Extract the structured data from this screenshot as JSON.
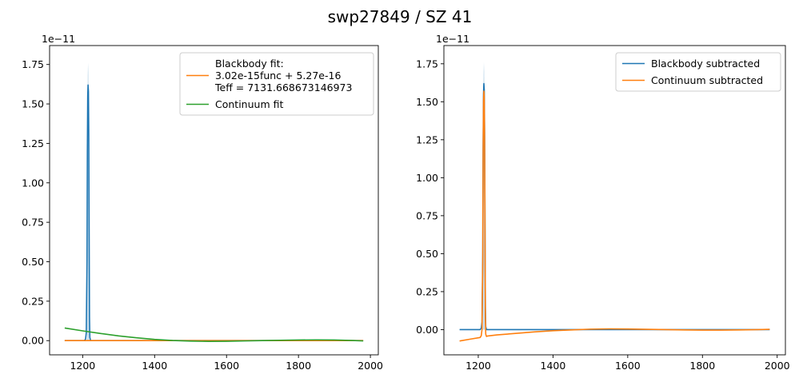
{
  "figure": {
    "title": "swp27849 / SZ  41"
  },
  "chart_data": [
    {
      "type": "line",
      "title": "",
      "xlabel": "",
      "ylabel": "",
      "xlim": [
        1108,
        2022
      ],
      "ylim": [
        -0.09,
        1.87
      ],
      "y_offset_label": "1e−11",
      "x_ticks": [
        1200,
        1400,
        1600,
        1800,
        2000
      ],
      "x_tick_labels": [
        "1200",
        "1400",
        "1600",
        "1800",
        "2000"
      ],
      "y_ticks": [
        0.0,
        0.25,
        0.5,
        0.75,
        1.0,
        1.25,
        1.5,
        1.75
      ],
      "y_tick_labels": [
        "0.00",
        "0.25",
        "0.50",
        "0.75",
        "1.00",
        "1.25",
        "1.50",
        "1.75"
      ],
      "legend_position": "top-right",
      "grid": false,
      "series": [
        {
          "name": "",
          "color": "#1f77b4",
          "in_legend": false,
          "x": [
            1150,
            1205,
            1208,
            1210,
            1212,
            1213,
            1214,
            1215,
            1216,
            1217,
            1218,
            1219,
            1220,
            1222,
            1225,
            1300,
            1400,
            1500,
            1600,
            1700,
            1800,
            1900,
            1980
          ],
          "y": [
            0.0,
            0.0,
            0.01,
            0.05,
            0.5,
            1.2,
            1.55,
            1.62,
            1.58,
            1.3,
            0.7,
            0.15,
            0.02,
            0.0,
            0.0,
            0.0,
            0.0,
            0.0,
            0.0,
            0.0,
            0.0,
            0.0,
            0.0
          ]
        },
        {
          "name": "",
          "color": "#1f77b4",
          "in_legend": false,
          "role": "error-band",
          "x": [
            1212,
            1213,
            1214,
            1215,
            1216,
            1217,
            1218
          ],
          "y": [
            0.6,
            1.35,
            1.68,
            1.76,
            1.7,
            1.4,
            0.8
          ]
        },
        {
          "name": "Blackbody fit:\n3.02e-15func + 5.27e-16\nTeff = 7131.668673146973",
          "color": "#ff7f0e",
          "in_legend": true,
          "x": [
            1150,
            1300,
            1400,
            1500,
            1600,
            1700,
            1800,
            1900,
            1980
          ],
          "y": [
            0.0,
            0.0,
            0.0,
            0.0,
            0.0,
            0.0,
            0.0,
            0.0,
            0.0
          ]
        },
        {
          "name": "Continuum fit",
          "color": "#2ca02c",
          "in_legend": true,
          "x": [
            1150,
            1200,
            1250,
            1300,
            1350,
            1400,
            1450,
            1500,
            1550,
            1600,
            1650,
            1700,
            1750,
            1800,
            1850,
            1900,
            1950,
            1980
          ],
          "y": [
            0.08,
            0.062,
            0.045,
            0.03,
            0.018,
            0.008,
            0.001,
            -0.003,
            -0.005,
            -0.004,
            -0.002,
            0.0,
            0.002,
            0.004,
            0.005,
            0.004,
            0.001,
            -0.002
          ]
        }
      ]
    },
    {
      "type": "line",
      "title": "",
      "xlabel": "",
      "ylabel": "",
      "xlim": [
        1108,
        2022
      ],
      "ylim": [
        -0.166,
        1.87
      ],
      "y_offset_label": "1e−11",
      "x_ticks": [
        1200,
        1400,
        1600,
        1800,
        2000
      ],
      "x_tick_labels": [
        "1200",
        "1400",
        "1600",
        "1800",
        "2000"
      ],
      "y_ticks": [
        0.0,
        0.25,
        0.5,
        0.75,
        1.0,
        1.25,
        1.5,
        1.75
      ],
      "y_tick_labels": [
        "0.00",
        "0.25",
        "0.50",
        "0.75",
        "1.00",
        "1.25",
        "1.50",
        "1.75"
      ],
      "legend_position": "top-right",
      "grid": false,
      "series": [
        {
          "name": "Blackbody subtracted",
          "color": "#1f77b4",
          "in_legend": true,
          "x": [
            1150,
            1205,
            1208,
            1210,
            1212,
            1213,
            1214,
            1215,
            1216,
            1217,
            1218,
            1219,
            1220,
            1222,
            1225,
            1300,
            1400,
            1500,
            1600,
            1700,
            1800,
            1900,
            1980
          ],
          "y": [
            0.0,
            0.0,
            0.01,
            0.05,
            0.5,
            1.2,
            1.55,
            1.62,
            1.58,
            1.3,
            0.7,
            0.15,
            0.02,
            0.0,
            0.0,
            0.0,
            0.0,
            0.0,
            0.0,
            0.0,
            0.0,
            0.0,
            0.0
          ]
        },
        {
          "name": "",
          "color": "#1f77b4",
          "in_legend": false,
          "role": "error-band",
          "x": [
            1212,
            1213,
            1214,
            1215,
            1216,
            1217,
            1218
          ],
          "y": [
            0.6,
            1.35,
            1.68,
            1.76,
            1.7,
            1.4,
            0.8
          ]
        },
        {
          "name": "Continuum subtracted",
          "color": "#ff7f0e",
          "in_legend": true,
          "x": [
            1150,
            1180,
            1205,
            1208,
            1210,
            1212,
            1213,
            1214,
            1215,
            1216,
            1217,
            1218,
            1219,
            1220,
            1222,
            1225,
            1250,
            1300,
            1350,
            1400,
            1450,
            1500,
            1550,
            1600,
            1650,
            1700,
            1750,
            1800,
            1850,
            1900,
            1950,
            1980
          ],
          "y": [
            -0.075,
            -0.062,
            -0.052,
            -0.04,
            0.0,
            0.45,
            1.15,
            1.5,
            1.57,
            1.53,
            1.25,
            0.65,
            0.1,
            -0.03,
            -0.045,
            -0.042,
            -0.035,
            -0.025,
            -0.015,
            -0.007,
            -0.002,
            0.003,
            0.005,
            0.004,
            0.002,
            0.0,
            -0.002,
            -0.003,
            -0.003,
            -0.002,
            0.0,
            0.002
          ]
        }
      ]
    }
  ]
}
